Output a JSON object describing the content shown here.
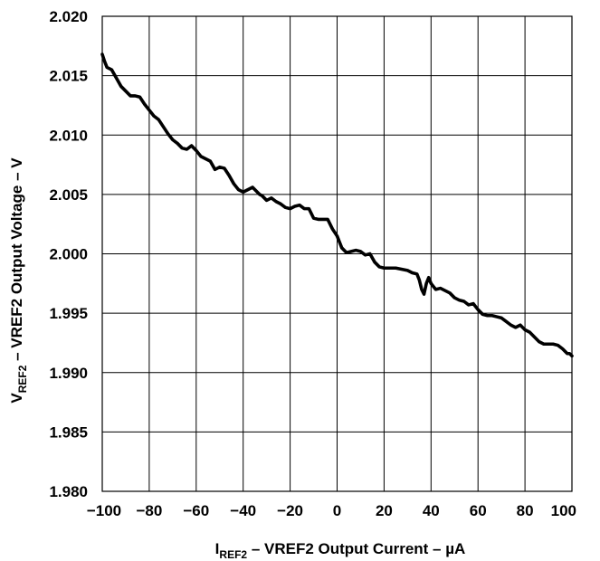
{
  "chart_data": {
    "type": "line",
    "title": "",
    "xlabel": {
      "main": "I",
      "sub": "REF2",
      "rest": " – VREF2 Output Current – µA"
    },
    "ylabel": {
      "main": "V",
      "sub": "REF2",
      "rest": " – VREF2 Output Voltage – V"
    },
    "xlim": [
      -100,
      100
    ],
    "ylim": [
      1.98,
      2.02
    ],
    "x_ticks": [
      -100,
      -80,
      -60,
      -40,
      -20,
      0,
      20,
      40,
      60,
      80,
      100
    ],
    "x_tick_labels": [
      "−100",
      "−80",
      "−60",
      "−40",
      "−20",
      "0",
      "20",
      "40",
      "60",
      "80",
      "100"
    ],
    "y_ticks": [
      1.98,
      1.985,
      1.99,
      1.995,
      2.0,
      2.005,
      2.01,
      2.015,
      2.02
    ],
    "y_tick_labels": [
      "1.980",
      "1.985",
      "1.990",
      "1.995",
      "2.000",
      "2.005",
      "2.010",
      "2.015",
      "2.020"
    ],
    "grid": true,
    "line_color": "#000000",
    "series": [
      {
        "x": [
          -100,
          -99,
          -98,
          -96,
          -94,
          -92,
          -90,
          -88,
          -86,
          -84,
          -82,
          -80,
          -78,
          -76,
          -74,
          -72,
          -70,
          -68,
          -66,
          -64,
          -62,
          -60,
          -58,
          -56,
          -54,
          -52,
          -50,
          -48,
          -46,
          -44,
          -42,
          -40,
          -38,
          -36,
          -34,
          -33,
          -32,
          -30,
          -28,
          -26,
          -24,
          -22,
          -20,
          -18,
          -16,
          -14,
          -12,
          -10,
          -8,
          -6,
          -4,
          -2,
          0,
          1,
          2,
          4,
          6,
          8,
          10,
          12,
          14,
          16,
          18,
          20,
          25,
          30,
          32,
          34,
          35,
          36,
          37,
          38,
          39,
          40,
          42,
          44,
          46,
          48,
          50,
          52,
          54,
          56,
          58,
          60,
          62,
          64,
          66,
          68,
          70,
          72,
          74,
          76,
          78,
          80,
          82,
          84,
          86,
          88,
          90,
          92,
          94,
          96,
          98,
          99,
          100
        ],
        "y": [
          2.0168,
          2.0162,
          2.0157,
          2.0155,
          2.0148,
          2.0141,
          2.0137,
          2.0133,
          2.0133,
          2.0132,
          2.0126,
          2.0121,
          2.0116,
          2.0113,
          2.0107,
          2.0101,
          2.0096,
          2.0093,
          2.0089,
          2.0088,
          2.0091,
          2.0087,
          2.0082,
          2.008,
          2.0078,
          2.0071,
          2.0073,
          2.0072,
          2.0066,
          2.0059,
          2.0054,
          2.0052,
          2.0054,
          2.0056,
          2.0052,
          2.005,
          2.0049,
          2.0045,
          2.0047,
          2.0044,
          2.0042,
          2.0039,
          2.0038,
          2.004,
          2.0041,
          2.0038,
          2.0038,
          2.003,
          2.0029,
          2.0029,
          2.0029,
          2.0021,
          2.0015,
          2.001,
          2.0005,
          2.0001,
          2.0002,
          2.0003,
          2.0002,
          1.9999,
          2.0,
          1.9993,
          1.9989,
          1.9988,
          1.9988,
          1.9986,
          1.9984,
          1.9983,
          1.9978,
          1.997,
          1.9966,
          1.9975,
          1.998,
          1.9975,
          1.997,
          1.9971,
          1.9969,
          1.9967,
          1.9963,
          1.9961,
          1.996,
          1.9957,
          1.9958,
          1.9953,
          1.9949,
          1.9948,
          1.9948,
          1.9947,
          1.9946,
          1.9943,
          1.994,
          1.9938,
          1.994,
          1.9936,
          1.9934,
          1.993,
          1.9926,
          1.9924,
          1.9924,
          1.9924,
          1.9923,
          1.992,
          1.9916,
          1.9916,
          1.9914
        ]
      }
    ]
  }
}
